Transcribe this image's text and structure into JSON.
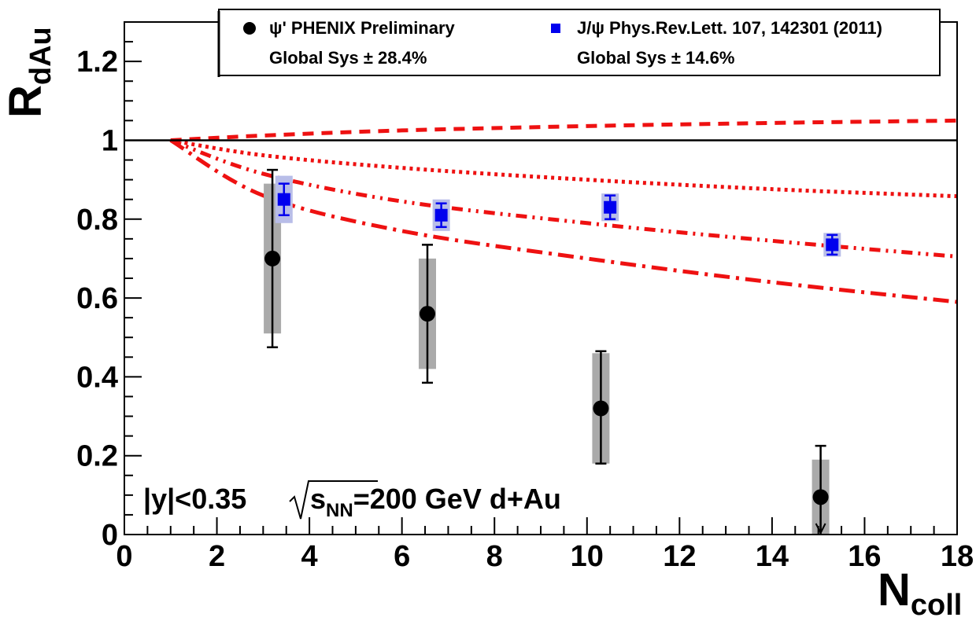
{
  "chart_data": {
    "type": "scatter",
    "title": "",
    "xlabel": "N",
    "xlabel_sub": "coll",
    "ylabel": "R",
    "ylabel_sub": "dAu",
    "xlim": [
      0,
      18
    ],
    "ylim": [
      0,
      1.3
    ],
    "x_ticks": [
      "0",
      "2",
      "4",
      "6",
      "8",
      "10",
      "12",
      "14",
      "16",
      "18"
    ],
    "y_ticks": [
      "0",
      "0.2",
      "0.4",
      "0.6",
      "0.8",
      "1",
      "1.2"
    ],
    "grid": false,
    "reference_line": 1.0,
    "annotation": {
      "prefix": "|y|<0.35 ",
      "sqrt_s": "s",
      "sqrt_sub": "NN",
      "suffix": "=200 GeV d+Au"
    },
    "legend": {
      "placement": "top",
      "entries": [
        {
          "label": "ψ' PHENIX Preliminary",
          "sys": "Global Sys ± 28.4%"
        },
        {
          "label": "J/ψ Phys.Rev.Lett. 107, 142301 (2011)",
          "sys": "Global Sys ± 14.6%"
        }
      ]
    },
    "series": [
      {
        "name": "ψ' PHENIX Preliminary",
        "marker": "circle",
        "color": "#000000",
        "sys_color": "#aaaaaa",
        "points": [
          {
            "x": 3.2,
            "y": 0.7,
            "err_lo": 0.225,
            "err_hi": 0.225,
            "sys": 0.19
          },
          {
            "x": 6.55,
            "y": 0.56,
            "err_lo": 0.175,
            "err_hi": 0.175,
            "sys": 0.14
          },
          {
            "x": 10.3,
            "y": 0.32,
            "err_lo": 0.14,
            "err_hi": 0.145,
            "sys": 0.14
          },
          {
            "x": 15.05,
            "y": 0.095,
            "err_lo": 0.095,
            "err_hi": 0.13,
            "sys": 0.095,
            "upper_arrow": true
          }
        ]
      },
      {
        "name": "J/ψ Phys.Rev.Lett. 107, 142301 (2011)",
        "marker": "square",
        "color": "#0000ee",
        "sys_color": "#b8bde8",
        "points": [
          {
            "x": 3.45,
            "y": 0.85,
            "err_lo": 0.04,
            "err_hi": 0.04,
            "sys": 0.06
          },
          {
            "x": 6.85,
            "y": 0.81,
            "err_lo": 0.03,
            "err_hi": 0.03,
            "sys": 0.04
          },
          {
            "x": 10.5,
            "y": 0.83,
            "err_lo": 0.03,
            "err_hi": 0.03,
            "sys": 0.035
          },
          {
            "x": 15.3,
            "y": 0.735,
            "err_lo": 0.025,
            "err_hi": 0.025,
            "sys": 0.03
          }
        ]
      }
    ],
    "curves": [
      {
        "style": "dashed",
        "color": "#ee1111",
        "x": [
          1,
          3,
          6,
          10,
          14,
          18
        ],
        "y": [
          1.0,
          1.012,
          1.025,
          1.036,
          1.044,
          1.05
        ]
      },
      {
        "style": "dotted",
        "color": "#ee1111",
        "x": [
          1,
          3,
          6,
          10,
          14,
          18
        ],
        "y": [
          1.0,
          0.962,
          0.93,
          0.9,
          0.876,
          0.858
        ]
      },
      {
        "style": "dashdot2",
        "color": "#ee1111",
        "x": [
          1,
          3,
          6,
          10,
          14,
          18
        ],
        "y": [
          1.0,
          0.915,
          0.845,
          0.79,
          0.745,
          0.705
        ]
      },
      {
        "style": "dashdot",
        "color": "#ee1111",
        "x": [
          1,
          3,
          6,
          10,
          14,
          18
        ],
        "y": [
          1.0,
          0.86,
          0.77,
          0.7,
          0.64,
          0.59
        ]
      }
    ]
  }
}
